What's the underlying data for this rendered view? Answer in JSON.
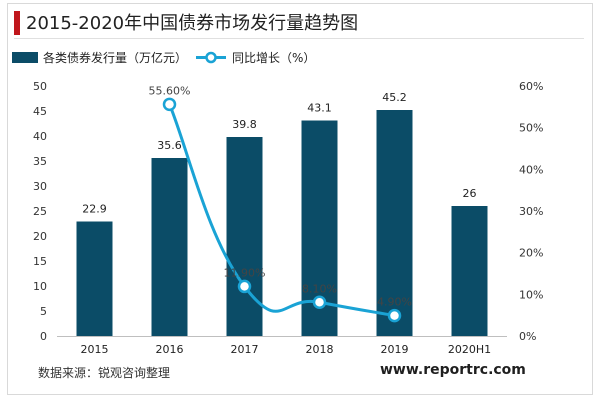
{
  "page": {
    "title": "2015-2020年中国债券市场发行量趋势图",
    "source": "数据来源：锐观咨询整理",
    "website": "www.reportrc.com"
  },
  "colors": {
    "bar": "#0b4c67",
    "line": "#1aa3d5",
    "title_accent": "#c0161c"
  },
  "chart_data": {
    "type": "bar+line",
    "categories": [
      "2015",
      "2016",
      "2017",
      "2018",
      "2019",
      "2020H1"
    ],
    "legend_position": "top-left",
    "grid": false,
    "series": [
      {
        "name": "各类债券发行量（万亿元）",
        "type": "bar",
        "axis": "left",
        "values": [
          22.9,
          35.6,
          39.8,
          43.1,
          45.2,
          26
        ],
        "labels": [
          "22.9",
          "35.6",
          "39.8",
          "43.1",
          "45.2",
          "26"
        ]
      },
      {
        "name": "同比增长（%）",
        "type": "line",
        "axis": "right",
        "values": [
          null,
          55.6,
          11.9,
          8.1,
          4.9,
          null
        ],
        "labels": [
          "",
          "55.60%",
          "11.90%",
          "8.10%",
          "4.90%",
          ""
        ]
      }
    ],
    "y_left": {
      "min": 0,
      "max": 50,
      "ticks": [
        0,
        5,
        10,
        15,
        20,
        25,
        30,
        35,
        40,
        45,
        50
      ],
      "tick_labels": [
        "0",
        "5",
        "10",
        "15",
        "20",
        "25",
        "30",
        "35",
        "40",
        "45",
        "50"
      ]
    },
    "y_right": {
      "min": 0,
      "max": 60,
      "ticks": [
        0,
        10,
        20,
        30,
        40,
        50,
        60
      ],
      "tick_labels": [
        "0%",
        "10%",
        "20%",
        "30%",
        "40%",
        "50%",
        "60%"
      ]
    }
  }
}
